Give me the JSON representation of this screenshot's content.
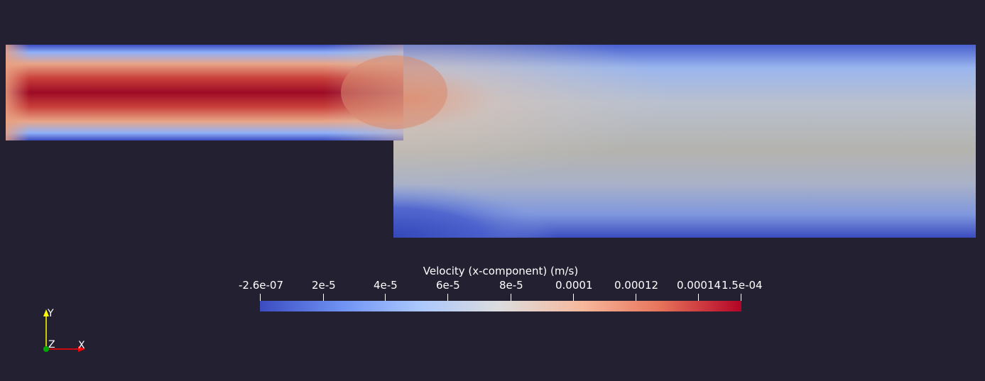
{
  "scalar_bar": {
    "title": "Velocity (x-component) (m/s)",
    "ticks": [
      "-2.6e-07",
      "2e-5",
      "4e-5",
      "6e-5",
      "8e-5",
      "0.0001",
      "0.00012",
      "0.00014",
      "1.5e-04"
    ],
    "colormap": [
      "#3b4cc0",
      "#6f92f3",
      "#aac7fd",
      "#dddddd",
      "#f7b89c",
      "#e7745b",
      "#b40426"
    ]
  },
  "orientation_axes": {
    "y_label": "Y",
    "z_label": "Z",
    "x_label": "X",
    "y_color": "#ffff00",
    "x_color": "#ff0000",
    "z_color": "#00aa00"
  },
  "colors": {
    "background": "#232131"
  }
}
